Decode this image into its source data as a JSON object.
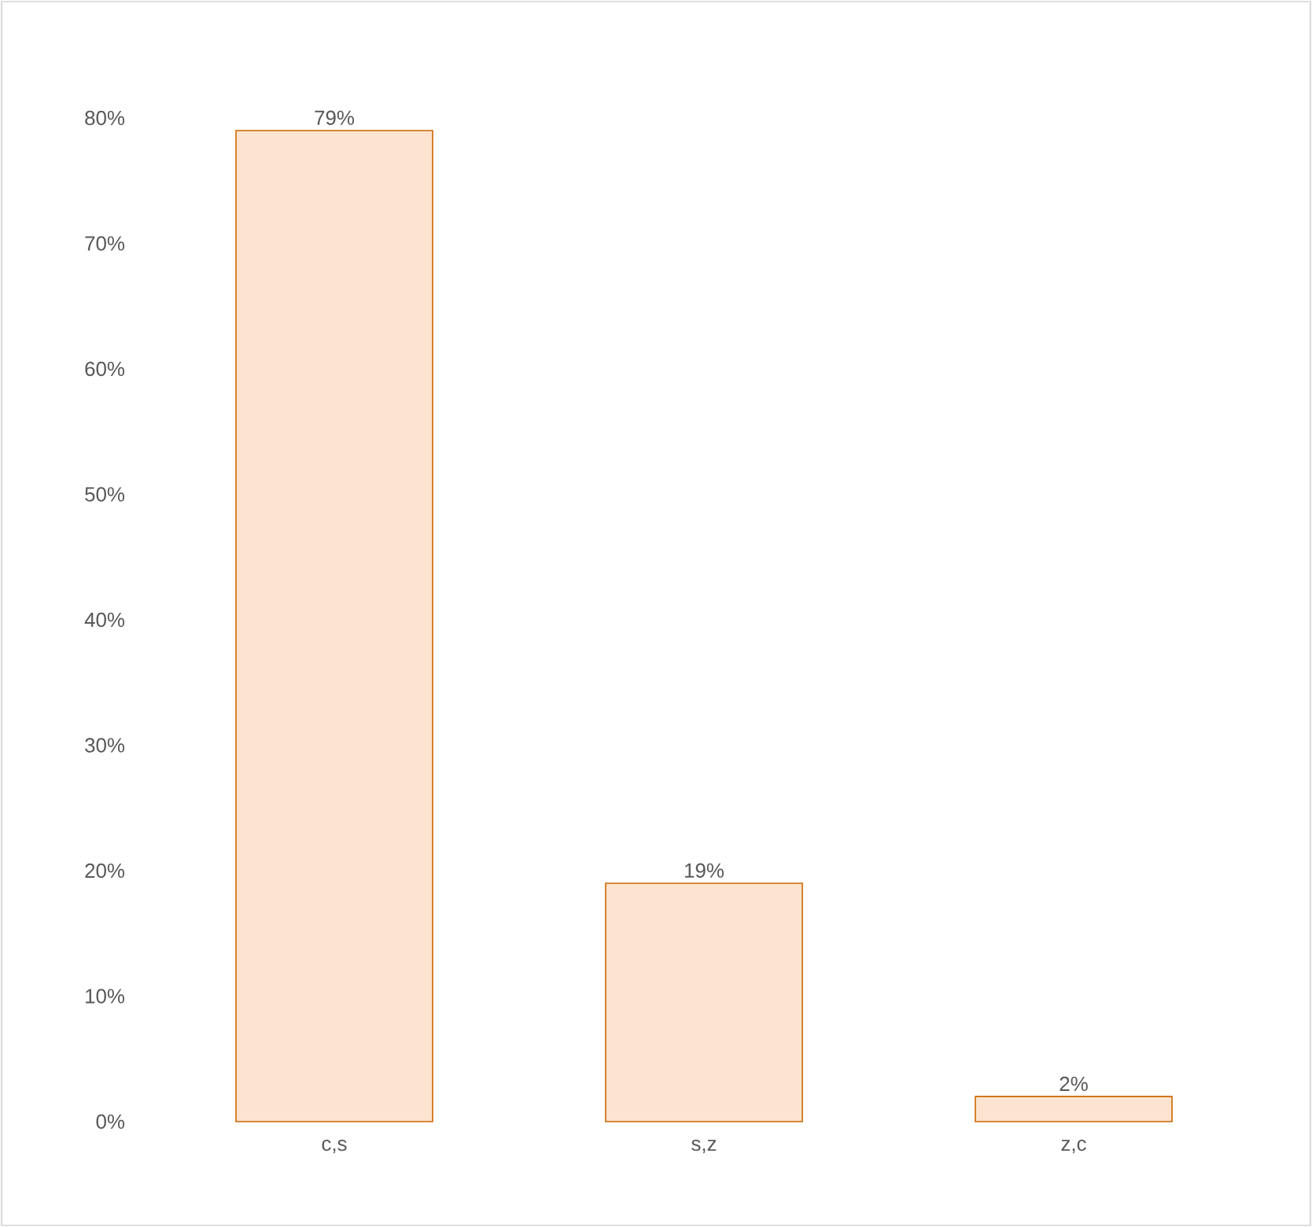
{
  "chart_data": {
    "type": "bar",
    "categories": [
      "c,s",
      "s,z",
      "z,c"
    ],
    "values": [
      79,
      19,
      2
    ],
    "value_labels": [
      "79%",
      "19%",
      "2%"
    ],
    "color": "#fce4d0",
    "ylim": [
      0,
      80
    ],
    "yticks": [
      {
        "value": 0,
        "label": "0%"
      },
      {
        "value": 10,
        "label": "10%"
      },
      {
        "value": 20,
        "label": "20%"
      },
      {
        "value": 30,
        "label": "30%"
      },
      {
        "value": 40,
        "label": "40%"
      },
      {
        "value": 50,
        "label": "50%"
      },
      {
        "value": 60,
        "label": "60%"
      },
      {
        "value": 70,
        "label": "70%"
      },
      {
        "value": 80,
        "label": "80%"
      }
    ]
  }
}
